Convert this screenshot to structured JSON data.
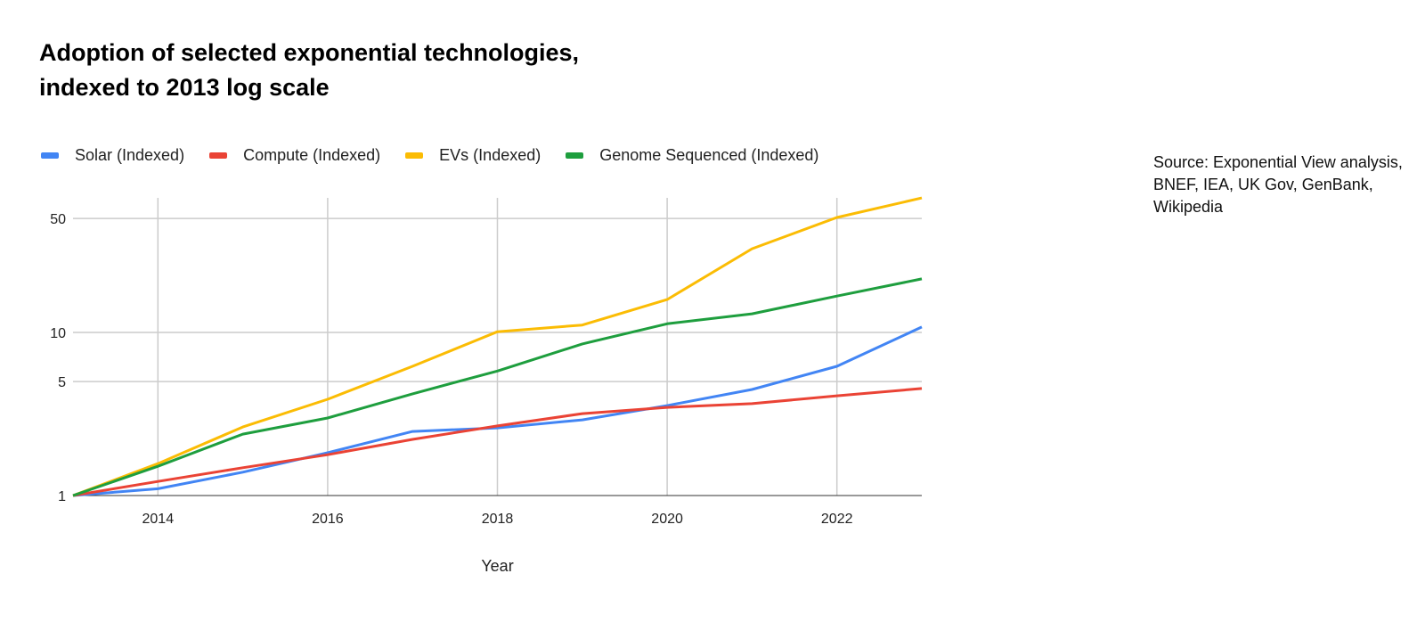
{
  "chart_data": {
    "type": "line",
    "title": "Adoption of selected exponential technologies, indexed to 2013 log scale",
    "title_lines": [
      "Adoption of selected exponential technologies,",
      "indexed to 2013 log scale"
    ],
    "xlabel": "Year",
    "ylabel": "",
    "x": [
      2013,
      2014,
      2015,
      2016,
      2017,
      2018,
      2019,
      2020,
      2021,
      2022,
      2023
    ],
    "xlim": [
      2013,
      2023
    ],
    "ylim": [
      1,
      67
    ],
    "y_scale": "log",
    "x_ticks": [
      2014,
      2016,
      2018,
      2020,
      2022
    ],
    "x_tick_labels": [
      "2014",
      "2016",
      "2018",
      "2020",
      "2022"
    ],
    "y_ticks": [
      1,
      5,
      10,
      50
    ],
    "y_tick_labels": [
      "1",
      "5",
      "10",
      "50"
    ],
    "grid": true,
    "legend_position": "top",
    "series": [
      {
        "name": "Solar (Indexed)",
        "color": "#4285f4",
        "values": [
          1,
          1.1,
          1.39,
          1.83,
          2.47,
          2.6,
          2.91,
          3.56,
          4.47,
          6.2,
          10.8
        ]
      },
      {
        "name": "Compute (Indexed)",
        "color": "#ea4335",
        "values": [
          1,
          1.22,
          1.48,
          1.78,
          2.21,
          2.67,
          3.18,
          3.47,
          3.66,
          4.09,
          4.53
        ]
      },
      {
        "name": "EVs (Indexed)",
        "color": "#fbbc04",
        "values": [
          1,
          1.57,
          2.63,
          3.89,
          6.2,
          10.1,
          11.1,
          15.9,
          32.6,
          50.7,
          66.8
        ]
      },
      {
        "name": "Genome Sequenced (Indexed)",
        "color": "#1e9e3e",
        "values": [
          1,
          1.51,
          2.38,
          2.99,
          4.2,
          5.8,
          8.5,
          11.3,
          13.0,
          16.7,
          21.3
        ]
      }
    ]
  },
  "source_note": "Source: Exponential View analysis, BNEF, IEA, UK Gov, GenBank, Wikipedia"
}
